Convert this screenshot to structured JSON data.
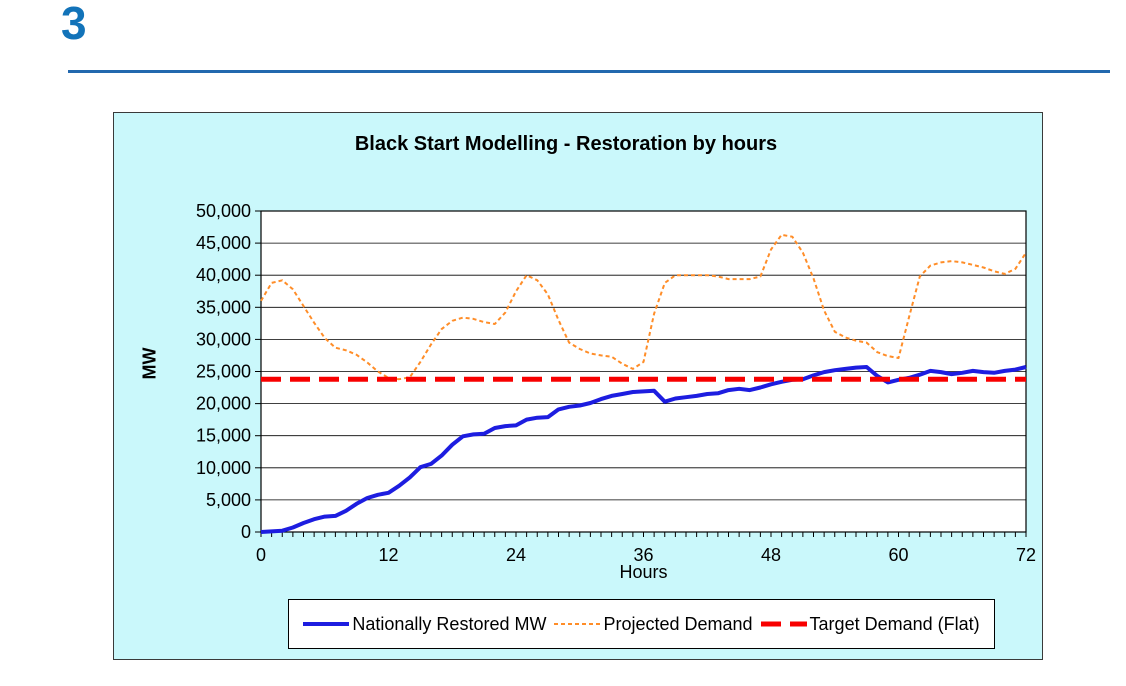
{
  "page": {
    "page_number": "3"
  },
  "colors": {
    "page_number_blue": "#1273B9",
    "header_rule_blue": "#2268AE",
    "chart_background_cyan": "#CAF8FB",
    "plot_background": "#FFFFFF",
    "restored_blue": "#1D1DE0",
    "projected_orange": "#FF8D28",
    "target_red": "#F80000"
  },
  "chart_data": {
    "type": "line",
    "title": "Black Start Modelling - Restoration by hours",
    "xlabel": "Hours",
    "ylabel": "MW",
    "xlim": [
      0,
      72
    ],
    "ylim": [
      0,
      50000
    ],
    "x_ticks": [
      0,
      12,
      24,
      36,
      48,
      60,
      72
    ],
    "y_tick_step": 5000,
    "x_minor_tick_step": 1,
    "grid": "horizontal",
    "legend_position": "bottom",
    "x": [
      0,
      1,
      2,
      3,
      4,
      5,
      6,
      7,
      8,
      9,
      10,
      11,
      12,
      13,
      14,
      15,
      16,
      17,
      18,
      19,
      20,
      21,
      22,
      23,
      24,
      25,
      26,
      27,
      28,
      29,
      30,
      31,
      32,
      33,
      34,
      35,
      36,
      37,
      38,
      39,
      40,
      41,
      42,
      43,
      44,
      45,
      46,
      47,
      48,
      49,
      50,
      51,
      52,
      53,
      54,
      55,
      56,
      57,
      58,
      59,
      60,
      61,
      62,
      63,
      64,
      65,
      66,
      67,
      68,
      69,
      70,
      71,
      72
    ],
    "series": [
      {
        "name": "Nationally Restored MW",
        "color": "#1D1DE0",
        "style": "solid",
        "width": 4,
        "values": [
          0,
          100,
          200,
          700,
          1400,
          2000,
          2400,
          2500,
          3300,
          4400,
          5300,
          5800,
          6100,
          7200,
          8500,
          10100,
          10600,
          11900,
          13600,
          14900,
          15200,
          15300,
          16200,
          16500,
          16600,
          17500,
          17800,
          17900,
          19100,
          19500,
          19700,
          20100,
          20700,
          21200,
          21500,
          21800,
          21900,
          22000,
          20300,
          20800,
          21000,
          21200,
          21500,
          21600,
          22100,
          22300,
          22100,
          22500,
          23000,
          23400,
          23700,
          23800,
          24400,
          24900,
          25200,
          25400,
          25600,
          25700,
          24300,
          23300,
          23700,
          24000,
          24500,
          25100,
          24900,
          24600,
          24800,
          25100,
          24900,
          24800,
          25100,
          25300,
          25700
        ]
      },
      {
        "name": "Projected Demand",
        "color": "#FF8D28",
        "style": "dashed",
        "dash": "4 3",
        "width": 2,
        "values": [
          36000,
          38800,
          39200,
          37800,
          35200,
          32600,
          30200,
          28700,
          28300,
          27600,
          26400,
          25000,
          24000,
          23800,
          24100,
          26500,
          29200,
          31600,
          32900,
          33400,
          33200,
          32700,
          32400,
          34200,
          37500,
          40000,
          39200,
          37000,
          33000,
          29500,
          28500,
          27800,
          27500,
          27300,
          26200,
          25400,
          26500,
          34000,
          38800,
          40000,
          40000,
          40000,
          40000,
          39800,
          39400,
          39400,
          39400,
          39800,
          44000,
          46300,
          46000,
          43500,
          39500,
          34500,
          31200,
          30300,
          29800,
          29500,
          28000,
          27400,
          27100,
          33500,
          39800,
          41500,
          42000,
          42200,
          42000,
          41600,
          41200,
          40600,
          40200,
          41000,
          43500
        ]
      },
      {
        "name": "Target Demand (Flat)",
        "color": "#F80000",
        "style": "dashed",
        "dash": "20 9",
        "width": 5,
        "constant_value": 23800
      }
    ]
  }
}
